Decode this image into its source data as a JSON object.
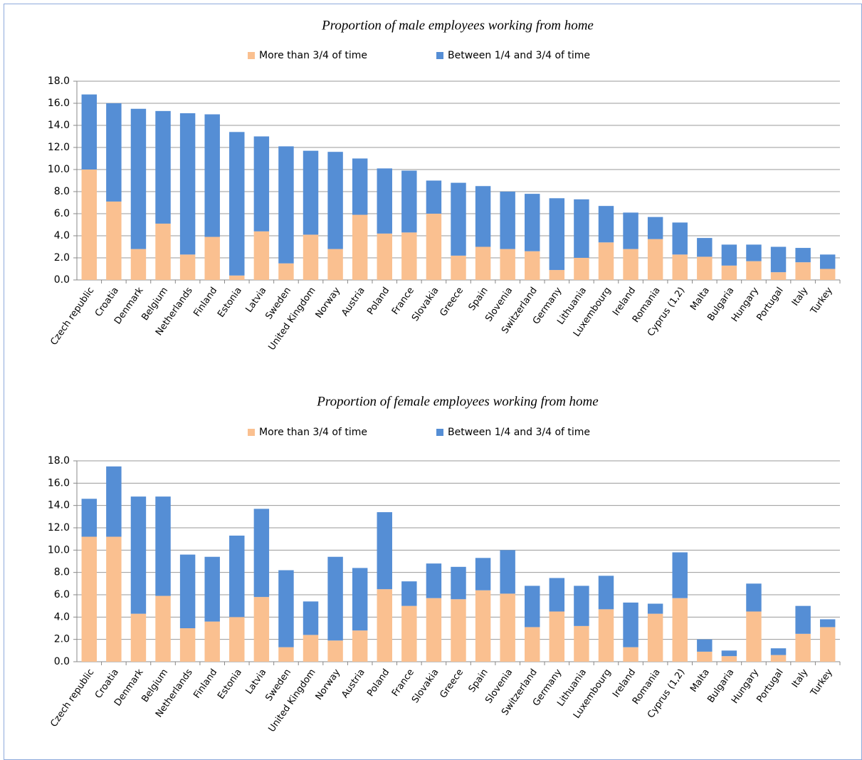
{
  "chart_data": [
    {
      "type": "stacked_bar",
      "title": "Proportion of male employees working from home",
      "categories": [
        "Czech republic",
        "Croatia",
        "Denmark",
        "Belgium",
        "Netherlands",
        "Finland",
        "Estonia",
        "Latvia",
        "Sweden",
        "United Kingdom",
        "Norway",
        "Austria",
        "Poland",
        "France",
        "Slovakia",
        "Greece",
        "Spain",
        "Slovenia",
        "Switzerland",
        "Germany",
        "Lithuania",
        "Luxembourg",
        "Ireland",
        "Romania",
        "Cyprus (1,2)",
        "Malta",
        "Bulgaria",
        "Hungary",
        "Portugal",
        "Italy",
        "Turkey"
      ],
      "series": [
        {
          "name": "More than 3/4 of time",
          "color": "#fac090",
          "values": [
            10.0,
            7.1,
            2.8,
            5.1,
            2.3,
            3.9,
            0.4,
            4.4,
            1.5,
            4.1,
            2.8,
            5.9,
            4.2,
            4.3,
            6.0,
            2.2,
            3.0,
            2.8,
            2.6,
            0.9,
            2.0,
            3.4,
            2.8,
            3.7,
            2.3,
            2.1,
            1.3,
            1.7,
            0.7,
            1.6,
            1.0
          ]
        },
        {
          "name": "Between 1/4 and 3/4 of time",
          "color": "#558ed5",
          "values": [
            6.8,
            8.9,
            12.7,
            10.2,
            12.8,
            11.1,
            13.0,
            8.6,
            10.6,
            7.6,
            8.8,
            5.1,
            5.9,
            5.6,
            3.0,
            6.6,
            5.5,
            5.2,
            5.2,
            6.5,
            5.3,
            3.3,
            3.3,
            2.0,
            2.9,
            1.7,
            1.9,
            1.5,
            2.3,
            1.3,
            1.3
          ]
        }
      ],
      "ylim": [
        0,
        18
      ],
      "yticks": [
        {
          "value": 0,
          "label": "0.0"
        },
        {
          "value": 2,
          "label": "2.0"
        },
        {
          "value": 4,
          "label": "4.0"
        },
        {
          "value": 6,
          "label": "6.0"
        },
        {
          "value": 8,
          "label": "8.0"
        },
        {
          "value": 10,
          "label": "10.0"
        },
        {
          "value": 12,
          "label": "12.0"
        },
        {
          "value": 14,
          "label": "14.0"
        },
        {
          "value": 16,
          "label": "16.0"
        },
        {
          "value": 18,
          "label": "18.0"
        }
      ],
      "grid": true
    },
    {
      "type": "stacked_bar",
      "title": "Proportion of female employees working from home",
      "categories": [
        "Czech republic",
        "Croatia",
        "Denmark",
        "Belgium",
        "Netherlands",
        "Finland",
        "Estonia",
        "Latvia",
        "Sweden",
        "United Kingdom",
        "Norway",
        "Austria",
        "Poland",
        "France",
        "Slovakia",
        "Greece",
        "Spain",
        "Slovenia",
        "Switzerland",
        "Germany",
        "Lithuania",
        "Luxembourg",
        "Ireland",
        "Romania",
        "Cyprus (1,2)",
        "Malta",
        "Bulgaria",
        "Hungary",
        "Portugal",
        "Italy",
        "Turkey"
      ],
      "series": [
        {
          "name": "More than 3/4 of time",
          "color": "#fac090",
          "values": [
            11.2,
            11.2,
            4.3,
            5.9,
            3.0,
            3.6,
            4.0,
            5.8,
            1.3,
            2.4,
            1.9,
            2.8,
            6.5,
            5.0,
            5.7,
            5.6,
            6.4,
            6.1,
            3.1,
            4.5,
            3.2,
            4.7,
            1.3,
            4.3,
            5.7,
            0.9,
            0.5,
            4.5,
            0.6,
            2.5,
            3.1
          ]
        },
        {
          "name": "Between 1/4 and 3/4 of time",
          "color": "#558ed5",
          "values": [
            3.4,
            6.3,
            10.5,
            8.9,
            6.6,
            5.8,
            7.3,
            7.9,
            6.9,
            3.0,
            7.5,
            5.6,
            6.9,
            2.2,
            3.1,
            2.9,
            2.9,
            3.9,
            3.7,
            3.0,
            3.6,
            3.0,
            4.0,
            0.9,
            4.1,
            1.1,
            0.5,
            2.5,
            0.6,
            2.5,
            0.7
          ]
        }
      ],
      "ylim": [
        0,
        18
      ],
      "yticks": [
        {
          "value": 0,
          "label": "0.0"
        },
        {
          "value": 2,
          "label": "2.0"
        },
        {
          "value": 4,
          "label": "4.0"
        },
        {
          "value": 6,
          "label": "6.0"
        },
        {
          "value": 8,
          "label": "8.0"
        },
        {
          "value": 10,
          "label": "10.0"
        },
        {
          "value": 12,
          "label": "12.0"
        },
        {
          "value": 14,
          "label": "14.0"
        },
        {
          "value": 16,
          "label": "16.0"
        },
        {
          "value": 18,
          "label": "18.0"
        }
      ],
      "grid": true
    }
  ]
}
